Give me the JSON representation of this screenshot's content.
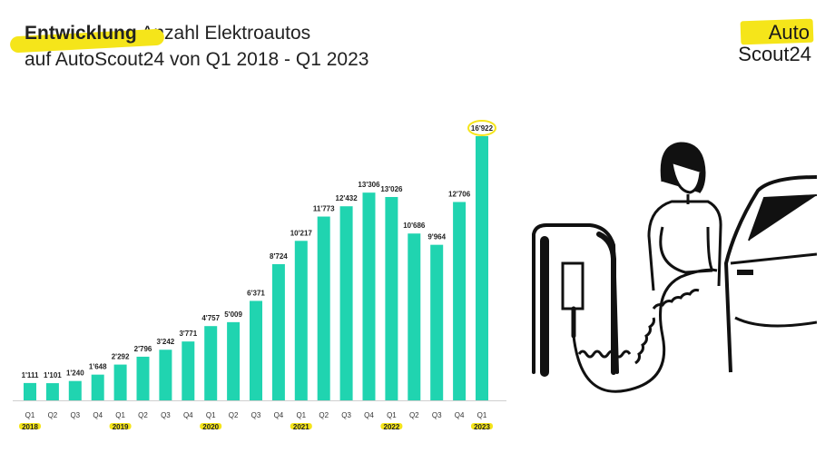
{
  "title": {
    "highlight": "Entwicklung",
    "rest_line1": " Anzahl Elektroautos",
    "line2": "auf AutoScout24 von Q1 2018 - Q1 2023"
  },
  "logo": {
    "line1": "Auto",
    "line2": "Scout24"
  },
  "colors": {
    "bar": "#20d4b0",
    "highlight": "#f5e51a"
  },
  "chart_data": {
    "type": "bar",
    "categories": [
      "Q1",
      "Q2",
      "Q3",
      "Q4",
      "Q1",
      "Q2",
      "Q3",
      "Q4",
      "Q1",
      "Q2",
      "Q3",
      "Q4",
      "Q1",
      "Q2",
      "Q3",
      "Q4",
      "Q1",
      "Q2",
      "Q3",
      "Q4",
      "Q1"
    ],
    "years": [
      {
        "label": "2018",
        "index": 0
      },
      {
        "label": "2019",
        "index": 4
      },
      {
        "label": "2020",
        "index": 8
      },
      {
        "label": "2021",
        "index": 12
      },
      {
        "label": "2022",
        "index": 16
      },
      {
        "label": "2023",
        "index": 20
      }
    ],
    "values": [
      1111,
      1101,
      1240,
      1648,
      2292,
      2796,
      3242,
      3771,
      4757,
      5009,
      6371,
      8724,
      10217,
      11773,
      12432,
      13306,
      13026,
      10686,
      9964,
      12706,
      16922
    ],
    "value_labels": [
      "1'111",
      "1'101",
      "1'240",
      "1'648",
      "2'292",
      "2'796",
      "3'242",
      "3'771",
      "4'757",
      "5'009",
      "6'371",
      "8'724",
      "10'217",
      "11'773",
      "12'432",
      "13'306",
      "13'026",
      "10'686",
      "9'964",
      "12'706",
      "16'922"
    ],
    "highlighted_index": 20,
    "ylim": [
      0,
      17000
    ],
    "grid": false,
    "xlabel": "",
    "ylabel": ""
  }
}
